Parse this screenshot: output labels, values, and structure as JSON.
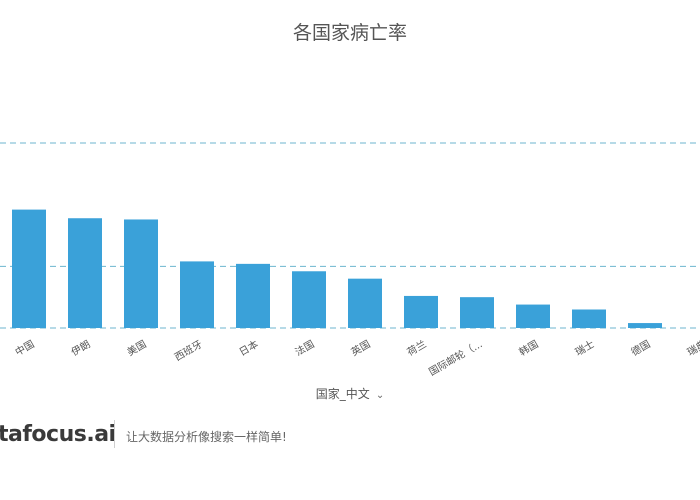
{
  "chart_data": {
    "type": "bar",
    "title": "各国家病亡率",
    "xlabel": "国家_中文",
    "categories": [
      "中国",
      "伊朗",
      "美国",
      "西班牙",
      "日本",
      "法国",
      "英国",
      "荷兰",
      "国际邮轮（...",
      "韩国",
      "瑞士",
      "德国",
      "瑞典"
    ],
    "values": [
      9.6,
      8.9,
      8.8,
      5.4,
      5.2,
      4.6,
      4.0,
      2.6,
      2.5,
      1.9,
      1.5,
      0.4,
      0
    ],
    "ylim": [
      0,
      15
    ],
    "gridlines": [
      0,
      5,
      15
    ],
    "bar_color": "#3aa1d9",
    "grid_color": "#6cb6cf"
  },
  "axis": {
    "dropdown_icon": "chevron-down-icon"
  },
  "footer": {
    "brand": "tafocus.ai",
    "slogan": "让大数据分析像搜索一样简单!"
  }
}
